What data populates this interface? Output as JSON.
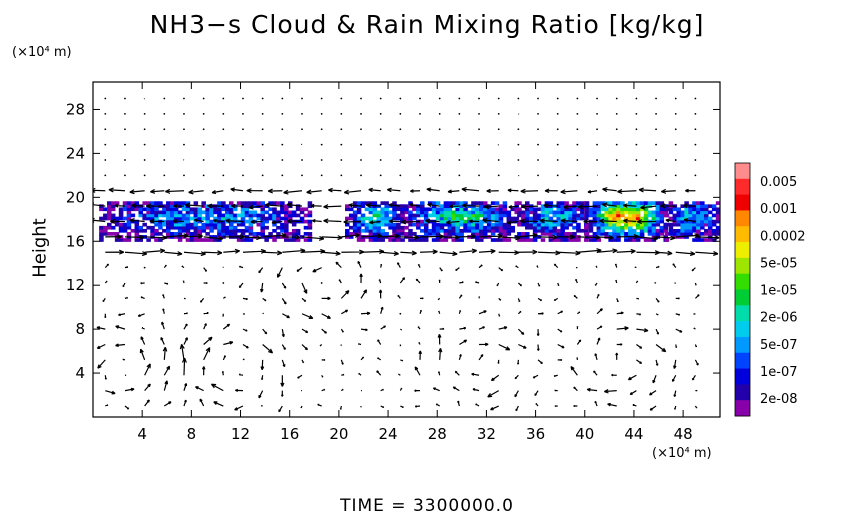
{
  "title": "NH3−s Cloud & Rain Mixing Ratio [kg/kg]",
  "y_unit": "(×10⁴ m)",
  "x_unit": "(×10⁴ m)",
  "time_label": "TIME = 3300000.0",
  "chart_data": {
    "type": "heatmap",
    "title": "NH3−s Cloud & Rain Mixing Ratio [kg/kg]",
    "xlabel": "",
    "ylabel": "Height",
    "x_ticks": [
      "4",
      "8",
      "12",
      "16",
      "20",
      "24",
      "28",
      "32",
      "36",
      "40",
      "44",
      "48"
    ],
    "x_tick_values": [
      4,
      8,
      12,
      16,
      20,
      24,
      28,
      32,
      36,
      40,
      44,
      48
    ],
    "y_ticks": [
      "4",
      "8",
      "12",
      "16",
      "20",
      "24",
      "28"
    ],
    "y_tick_values": [
      4,
      8,
      12,
      16,
      20,
      24,
      28
    ],
    "xlim": [
      0,
      51
    ],
    "ylim": [
      0,
      30.5
    ],
    "grid": false,
    "overlay": "wind vectors",
    "colorbar": {
      "labels": [
        "0.005",
        "0.001",
        "0.0002",
        "5e-05",
        "1e-05",
        "2e-06",
        "5e-07",
        "1e-07",
        "2e-08"
      ],
      "colors": [
        "#ff8c8c",
        "#ff2a2a",
        "#ee0000",
        "#ff8800",
        "#ffbb00",
        "#eeee00",
        "#9ee600",
        "#33dd00",
        "#00cc33",
        "#00ddaa",
        "#00ccee",
        "#0099ff",
        "#0044ff",
        "#0000dd",
        "#2200aa",
        "#8800aa"
      ]
    },
    "cloud_layer": {
      "y_range": [
        16,
        19.5
      ],
      "segments": [
        {
          "x": [
            0.5,
            17.5
          ],
          "peak": 4
        },
        {
          "x": [
            20.5,
            25
          ],
          "peak": 6
        },
        {
          "x": [
            25,
            34.5
          ],
          "peak": 6
        },
        {
          "x": [
            34.5,
            40
          ],
          "peak": 5
        },
        {
          "x": [
            40,
            46.5
          ],
          "peak": 13
        },
        {
          "x": [
            46.5,
            50.8
          ],
          "peak": 5
        }
      ]
    },
    "circulations": [
      {
        "x": 2.5,
        "y": 4.5,
        "sense": "ccw"
      },
      {
        "x": 11.5,
        "y": 4.5,
        "sense": "cw"
      },
      {
        "x": 19,
        "y": 12.5,
        "sense": "ccw"
      },
      {
        "x": 32,
        "y": 5,
        "sense": "cw"
      },
      {
        "x": 43.5,
        "y": 5,
        "sense": "cw"
      }
    ]
  }
}
